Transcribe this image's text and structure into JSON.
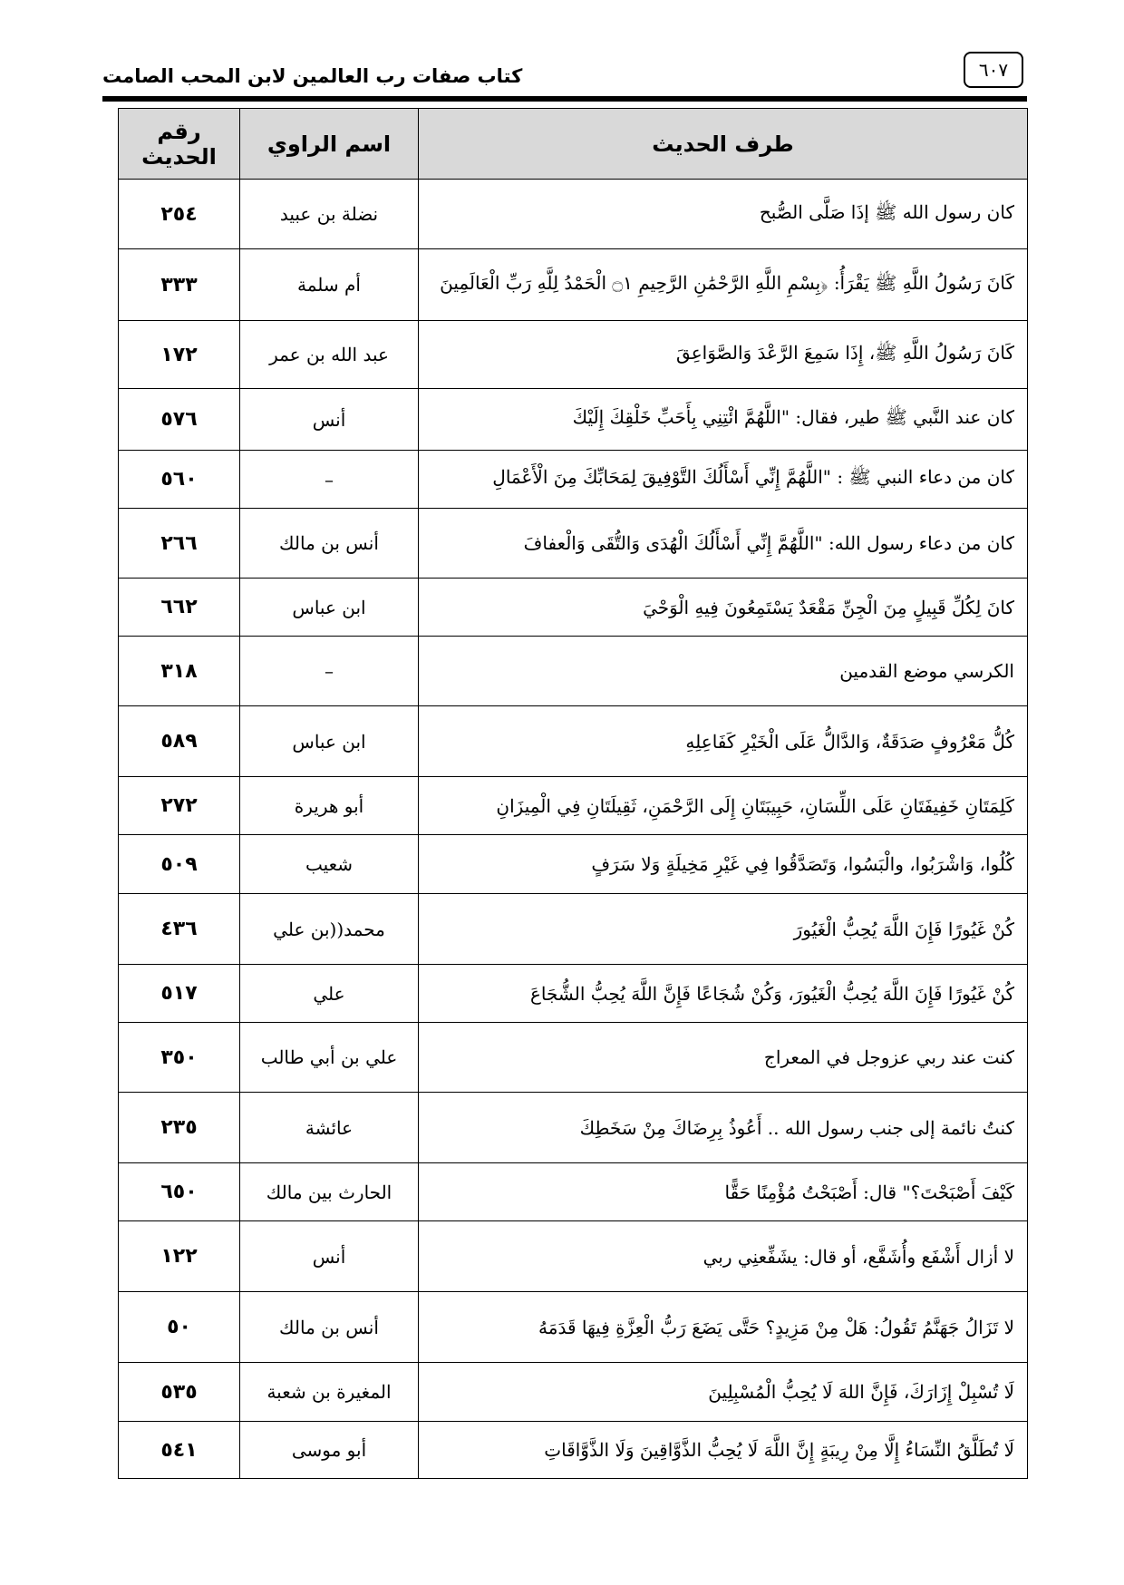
{
  "header": {
    "book_title": "كتاب صفات رب العالمين لابن المحب الصامت",
    "page_number": "٦٠٧"
  },
  "table": {
    "columns": [
      "طرف الحديث",
      "اسم الراوي",
      "رقم الحديث"
    ],
    "rows": [
      {
        "text": "كان رسول الله ﷺ إذَا صَلَّى الصُّبح",
        "narrator": "نضلة بن عبيد",
        "number": "٢٥٤"
      },
      {
        "text": "كَانَ رَسُولُ اللَّهِ ﷺ يَقْرَأُ: ﴿بِسْمِ اللَّهِ الرَّحْمَٰنِ الرَّحِيمِ ۝١ الْحَمْدُ لِلَّهِ رَبِّ الْعَالَمِينَ",
        "narrator": "أم سلمة",
        "number": "٣٣٣"
      },
      {
        "text": "كَانَ رَسُولُ اللَّهِ ﷺ، إِذَا سَمِعَ الرَّعْدَ وَالصَّوَاعِقَ",
        "narrator": "عبد الله بن عمر",
        "number": "١٧٢"
      },
      {
        "text": "كان عند النَّبي ﷺ طير، فقال: \"اللَّهُمَّ ائْتِنِي بِأَحَبِّ خَلْقِكَ إِلَيْكَ",
        "narrator": "أنس",
        "number": "٥٧٦"
      },
      {
        "text": "كان من دعاء النبي ﷺ : \"اللَّهُمَّ إِنِّي أَسْأَلُكَ التَّوْفِيقَ لِمَحَابِّكَ مِنَ الْأَعْمَالِ",
        "narrator": "–",
        "number": "٥٦٠"
      },
      {
        "text": "كان من دعاء رسول الله: \"اللَّهُمَّ إِنِّي أَسْأَلُكَ الْهُدَى وَالتُّقَى وَالْعفافَ",
        "narrator": "أنس بن مالك",
        "number": "٢٦٦"
      },
      {
        "text": "كانَ لِكُلِّ قَبِيلٍ مِنَ الْجِنِّ مَقْعَدٌ يَسْتَمِعُونَ فِيهِ الْوَحْيَ",
        "narrator": "ابن عباس",
        "number": "٦٦٢"
      },
      {
        "text": "الكرسي موضع القدمين",
        "narrator": "–",
        "number": "٣١٨"
      },
      {
        "text": "كُلُّ مَعْرُوفٍ صَدَقَةٌ، وَالدَّالُّ عَلَى الْخَيْرِ كَفَاعِلِهِ",
        "narrator": "ابن عباس",
        "number": "٥٨٩"
      },
      {
        "text": "كَلِمَتَانِ خَفِيفَتَانِ عَلَى اللِّسَانِ، حَبِيبَتَانِ إِلَى الرَّحْمَنِ، ثَقِيلَتَانِ فِي الْمِيزَانِ",
        "narrator": "أبو هريرة",
        "number": "٢٧٢"
      },
      {
        "text": "كُلُوا، وَاشْرَبُوا، والْبَسُوا، وَتَصَدَّقُوا فِي غَيْرِ مَخِيلَةٍ وَلا سَرَفٍ",
        "narrator": "شعيب",
        "number": "٥٠٩"
      },
      {
        "text": "كُنْ غَيُورًا فَإِنَ اللَّهَ يُحِبُّ الْغَيُورَ",
        "narrator": "محمد((بن علي",
        "number": "٤٣٦"
      },
      {
        "text": "كُنْ غَيُورًا فَإِنَ اللَّهَ يُحِبُّ الْغَيُورَ، وَكُنْ شُجَاعًا فَإِنَّ اللَّهَ يُحِبُّ الشُّجَاعَ",
        "narrator": "علي",
        "number": "٥١٧"
      },
      {
        "text": "كنت عند ربي عزوجل في المعراج",
        "narrator": "علي بن أبي طالب",
        "number": "٣٥٠"
      },
      {
        "text": "كنتُ نائمة إلى جنب رسول الله .. أَعُوذُ بِرِضَاكَ مِنْ سَخَطِكَ",
        "narrator": "عائشة",
        "number": "٢٣٥"
      },
      {
        "text": "كَيْفَ أَصْبَحْتَ؟\" قال: أَصْبَحْتُ مُؤْمِنًا حَقًّا",
        "narrator": "الحارث بين مالك",
        "number": "٦٥٠"
      },
      {
        "text": "لا أزال أَشْفَع وأُشَفَّع، أو قال: يشَفِّعنِي ربي",
        "narrator": "أنس",
        "number": "١٢٢"
      },
      {
        "text": "لا تَزَالُ جَهَنَّمُ تَقُولُ: هَلْ مِنْ مَزِيدٍ؟ حَتَّى يَضَعَ رَبُّ الْعِزَّةِ فِيهَا قَدَمَهُ",
        "narrator": "أنس بن مالك",
        "number": "٥٠"
      },
      {
        "text": "لَا تُسْبِلْ إِزَارَكَ، فَإِنَّ اللهَ لَا يُحِبُّ الْمُسْبِلِينَ",
        "narrator": "المغيرة بن شعبة",
        "number": "٥٣٥"
      },
      {
        "text": "لَا تُطَلَّقُ النِّسَاءُ إِلَّا مِنْ رِيبَةٍ إِنَّ اللَّهَ لَا يُحِبُّ الذَّوَّاقِينَ وَلَا الذَّوَّاقَاتِ",
        "narrator": "أبو موسى",
        "number": "٥٤١"
      }
    ]
  }
}
